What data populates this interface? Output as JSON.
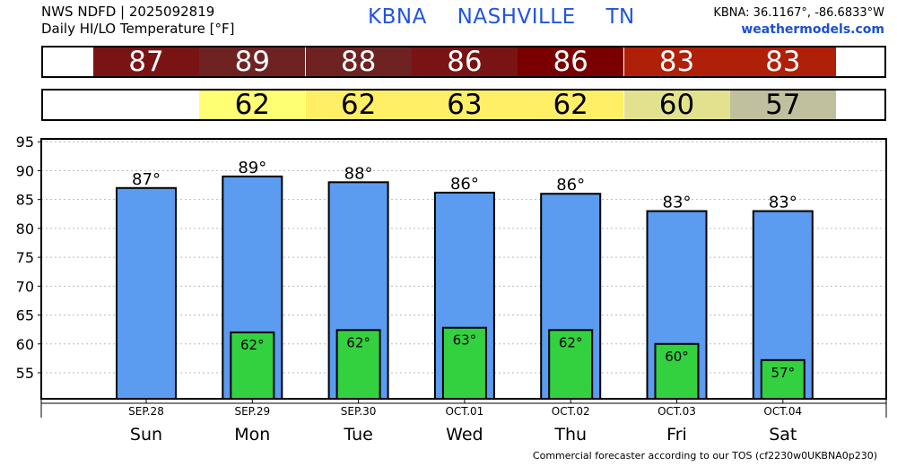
{
  "header": {
    "line1": "NWS NDFD | 2025092819",
    "line2": "Daily HI/LO Temperature [°F]",
    "station_code": "KBNA",
    "station_name": "NASHVILLE",
    "state": "TN",
    "coords": "KBNA: 36.1167°, -86.6833°W",
    "site": "weathermodels.com"
  },
  "strips": {
    "highs": [
      "87",
      "89",
      "88",
      "86",
      "86",
      "83",
      "83"
    ],
    "high_colors": [
      "#7a1414",
      "#6e2222",
      "#6e2222",
      "#7a1414",
      "#7a0000",
      "#b01f08",
      "#b01f08"
    ],
    "lows": [
      "",
      "62",
      "62",
      "63",
      "62",
      "60",
      "57"
    ],
    "low_colors": [
      "",
      "#ffff73",
      "#ffef66",
      "#ffef66",
      "#ffef66",
      "#e2e28e",
      "#c0c09e"
    ]
  },
  "footer": "Commercial forecaster according to our TOS (cf2230w0UKBNA0p230)",
  "chart_data": {
    "type": "bar",
    "categories": [
      "Sun",
      "Mon",
      "Tue",
      "Wed",
      "Thu",
      "Fri",
      "Sat"
    ],
    "dates": [
      "SEP.28",
      "SEP.29",
      "SEP.30",
      "OCT.01",
      "OCT.02",
      "OCT.03",
      "OCT.04"
    ],
    "series": [
      {
        "values": [
          87,
          89,
          88,
          86.2,
          86,
          83,
          83
        ],
        "labels": [
          "87°",
          "89°",
          "88°",
          "86°",
          "86°",
          "83°",
          "83°"
        ],
        "color": "#5b9bf0"
      },
      {
        "values": [
          null,
          62,
          62.4,
          62.8,
          62.4,
          60,
          57.2
        ],
        "labels": [
          "",
          "62°",
          "62°",
          "63°",
          "62°",
          "60°",
          "57°"
        ],
        "color": "#33d13f"
      }
    ],
    "ylim": [
      50.5,
      95.5
    ],
    "yticks": [
      55,
      60,
      65,
      70,
      75,
      80,
      85,
      90,
      95
    ],
    "grid": true
  }
}
